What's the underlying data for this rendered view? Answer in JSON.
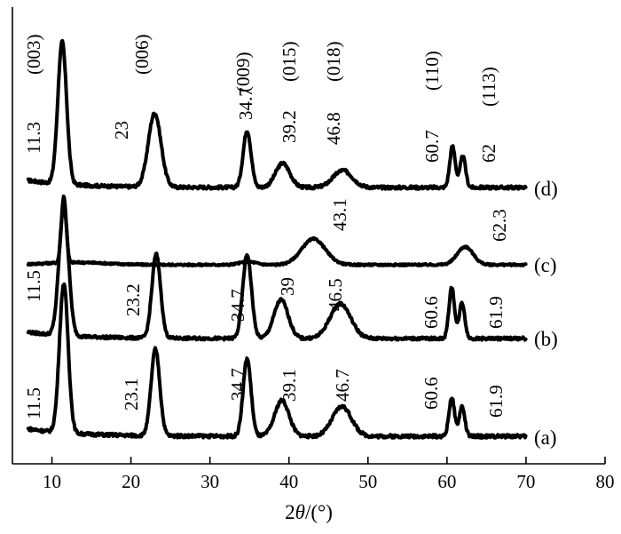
{
  "chart_data": {
    "type": "line",
    "xlabel_prefix": "2",
    "xlabel_var": "θ",
    "xlabel_suffix": "/(°)",
    "xlim": [
      5,
      80
    ],
    "xticks": [
      "10",
      "20",
      "30",
      "40",
      "50",
      "60",
      "70",
      "80"
    ],
    "series": [
      {
        "name": "(d)",
        "peaks": [
          {
            "x": 11.3,
            "h": 1.0,
            "w": 0.55
          },
          {
            "x": 23.0,
            "h": 0.52,
            "w": 0.8
          },
          {
            "x": 34.7,
            "h": 0.4,
            "w": 0.5
          },
          {
            "x": 39.2,
            "h": 0.17,
            "w": 0.9
          },
          {
            "x": 46.8,
            "h": 0.12,
            "w": 1.2
          },
          {
            "x": 60.7,
            "h": 0.29,
            "w": 0.35
          },
          {
            "x": 62.0,
            "h": 0.22,
            "w": 0.35
          }
        ],
        "peak_labels": [
          "11.3",
          "23",
          "34.7",
          "39.2",
          "46.8",
          "60.7",
          "62"
        ],
        "hkl": [
          "(003)",
          "(006)",
          "(009)",
          "(015)",
          "(018)",
          "(110)",
          "(113)"
        ]
      },
      {
        "name": "(c)",
        "peaks": [
          {
            "x": 11.5,
            "h": 0.85,
            "w": 0.3
          },
          {
            "x": 34.8,
            "h": 0.04,
            "w": 1.0
          },
          {
            "x": 43.1,
            "h": 0.33,
            "w": 1.5
          },
          {
            "x": 62.3,
            "h": 0.23,
            "w": 1.0
          }
        ],
        "peak_labels": [
          "43.1",
          "62.3"
        ]
      },
      {
        "name": "(b)",
        "peaks": [
          {
            "x": 11.5,
            "h": 1.0,
            "w": 0.6
          },
          {
            "x": 23.2,
            "h": 0.65,
            "w": 0.55
          },
          {
            "x": 34.7,
            "h": 0.65,
            "w": 0.55
          },
          {
            "x": 39.0,
            "h": 0.3,
            "w": 0.9
          },
          {
            "x": 46.5,
            "h": 0.27,
            "w": 1.3
          },
          {
            "x": 60.6,
            "h": 0.4,
            "w": 0.35
          },
          {
            "x": 61.9,
            "h": 0.28,
            "w": 0.35
          }
        ],
        "peak_labels": [
          "11.5",
          "23.2",
          "34.7",
          "39",
          "46.5",
          "60.6",
          "61.9"
        ]
      },
      {
        "name": "(a)",
        "peaks": [
          {
            "x": 11.5,
            "h": 1.0,
            "w": 0.55
          },
          {
            "x": 23.1,
            "h": 0.58,
            "w": 0.55
          },
          {
            "x": 34.7,
            "h": 0.52,
            "w": 0.5
          },
          {
            "x": 39.1,
            "h": 0.24,
            "w": 0.9
          },
          {
            "x": 46.7,
            "h": 0.2,
            "w": 1.2
          },
          {
            "x": 60.6,
            "h": 0.26,
            "w": 0.35
          },
          {
            "x": 61.9,
            "h": 0.2,
            "w": 0.35
          }
        ],
        "peak_labels": [
          "11.5",
          "23.1",
          "34.7",
          "39.1",
          "46.7",
          "60.6",
          "61.9"
        ]
      }
    ]
  }
}
